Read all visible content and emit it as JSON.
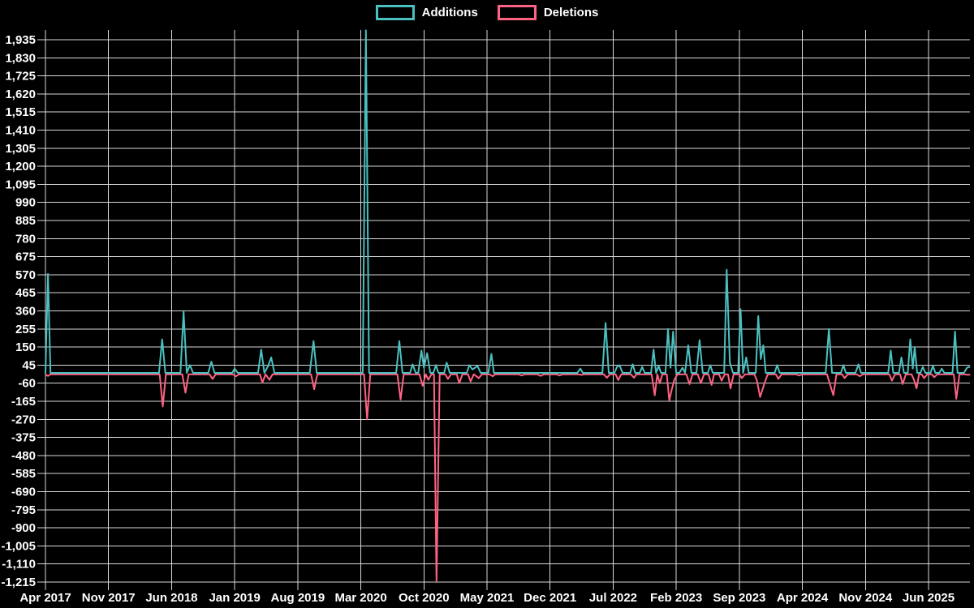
{
  "legend": {
    "items": [
      {
        "label": "Additions",
        "color": "#4bc0c0"
      },
      {
        "label": "Deletions",
        "color": "#ff6384"
      }
    ]
  },
  "chart_data": {
    "type": "line",
    "title": "",
    "legend_position": "top",
    "grid": "on",
    "background_color": "#000000",
    "grid_color": "#d9d9d9",
    "text_color": "#ffffff",
    "x_ticks": [
      "Apr 2017",
      "Nov 2017",
      "Jun 2018",
      "Jan 2019",
      "Aug 2019",
      "Mar 2020",
      "Oct 2020",
      "May 2021",
      "Dec 2021",
      "Jul 2022",
      "Feb 2023",
      "Sep 2023",
      "Apr 2024",
      "Nov 2024",
      "Jun 2025"
    ],
    "x_note": "series x values are fractional tick positions: 0 = Apr 2017, 14 = Jun 2025 (ticks every 7 months); data extends to 14.65",
    "y_axis": {
      "max": 1935,
      "min": -1215,
      "step": 105
    },
    "xlim": [
      0,
      14.65
    ],
    "series": [
      {
        "name": "Additions",
        "color": "#4bc0c0",
        "points": [
          [
            0.0,
            0
          ],
          [
            0.04,
            575
          ],
          [
            0.08,
            0
          ],
          [
            1.8,
            0
          ],
          [
            1.85,
            195
          ],
          [
            1.9,
            0
          ],
          [
            2.14,
            0
          ],
          [
            2.19,
            355
          ],
          [
            2.24,
            0
          ],
          [
            2.29,
            45
          ],
          [
            2.34,
            0
          ],
          [
            2.58,
            0
          ],
          [
            2.63,
            65
          ],
          [
            2.68,
            0
          ],
          [
            2.96,
            0
          ],
          [
            3.0,
            25
          ],
          [
            3.05,
            0
          ],
          [
            3.37,
            0
          ],
          [
            3.42,
            135
          ],
          [
            3.47,
            0
          ],
          [
            3.53,
            40
          ],
          [
            3.58,
            90
          ],
          [
            3.63,
            0
          ],
          [
            4.19,
            0
          ],
          [
            4.25,
            185
          ],
          [
            4.3,
            0
          ],
          [
            5.03,
            0
          ],
          [
            5.08,
            1990
          ],
          [
            5.13,
            0
          ],
          [
            5.56,
            0
          ],
          [
            5.61,
            185
          ],
          [
            5.66,
            0
          ],
          [
            5.78,
            0
          ],
          [
            5.82,
            50
          ],
          [
            5.87,
            0
          ],
          [
            5.91,
            0
          ],
          [
            5.96,
            130
          ],
          [
            6.0,
            30
          ],
          [
            6.05,
            115
          ],
          [
            6.1,
            0
          ],
          [
            6.15,
            0
          ],
          [
            6.19,
            45
          ],
          [
            6.23,
            0
          ],
          [
            6.32,
            0
          ],
          [
            6.36,
            60
          ],
          [
            6.41,
            0
          ],
          [
            6.68,
            0
          ],
          [
            6.72,
            45
          ],
          [
            6.77,
            20
          ],
          [
            6.85,
            40
          ],
          [
            6.9,
            0
          ],
          [
            7.02,
            0
          ],
          [
            7.07,
            110
          ],
          [
            7.11,
            0
          ],
          [
            8.43,
            0
          ],
          [
            8.48,
            25
          ],
          [
            8.52,
            0
          ],
          [
            8.83,
            0
          ],
          [
            8.88,
            290
          ],
          [
            8.93,
            0
          ],
          [
            9.02,
            0
          ],
          [
            9.06,
            35
          ],
          [
            9.1,
            45
          ],
          [
            9.15,
            0
          ],
          [
            9.27,
            0
          ],
          [
            9.31,
            50
          ],
          [
            9.35,
            0
          ],
          [
            9.42,
            0
          ],
          [
            9.46,
            35
          ],
          [
            9.5,
            0
          ],
          [
            9.6,
            0
          ],
          [
            9.64,
            135
          ],
          [
            9.68,
            0
          ],
          [
            9.72,
            40
          ],
          [
            9.76,
            0
          ],
          [
            9.83,
            0
          ],
          [
            9.87,
            255
          ],
          [
            9.91,
            30
          ],
          [
            9.95,
            240
          ],
          [
            10.0,
            0
          ],
          [
            10.05,
            0
          ],
          [
            10.1,
            30
          ],
          [
            10.14,
            0
          ],
          [
            10.19,
            160
          ],
          [
            10.24,
            0
          ],
          [
            10.32,
            0
          ],
          [
            10.37,
            190
          ],
          [
            10.42,
            0
          ],
          [
            10.5,
            0
          ],
          [
            10.54,
            45
          ],
          [
            10.58,
            0
          ],
          [
            10.76,
            0
          ],
          [
            10.8,
            600
          ],
          [
            10.85,
            60
          ],
          [
            10.9,
            0
          ],
          [
            10.98,
            0
          ],
          [
            11.02,
            370
          ],
          [
            11.06,
            0
          ],
          [
            11.11,
            90
          ],
          [
            11.15,
            0
          ],
          [
            11.26,
            0
          ],
          [
            11.3,
            330
          ],
          [
            11.34,
            80
          ],
          [
            11.38,
            160
          ],
          [
            11.42,
            0
          ],
          [
            11.56,
            0
          ],
          [
            11.6,
            45
          ],
          [
            11.64,
            0
          ],
          [
            12.37,
            0
          ],
          [
            12.42,
            255
          ],
          [
            12.47,
            0
          ],
          [
            12.61,
            0
          ],
          [
            12.65,
            45
          ],
          [
            12.69,
            0
          ],
          [
            12.84,
            0
          ],
          [
            12.89,
            50
          ],
          [
            12.93,
            0
          ],
          [
            13.36,
            0
          ],
          [
            13.4,
            130
          ],
          [
            13.44,
            0
          ],
          [
            13.53,
            0
          ],
          [
            13.57,
            90
          ],
          [
            13.61,
            0
          ],
          [
            13.67,
            0
          ],
          [
            13.71,
            195
          ],
          [
            13.75,
            25
          ],
          [
            13.78,
            150
          ],
          [
            13.82,
            0
          ],
          [
            13.87,
            0
          ],
          [
            13.91,
            35
          ],
          [
            13.95,
            0
          ],
          [
            14.03,
            0
          ],
          [
            14.07,
            40
          ],
          [
            14.11,
            0
          ],
          [
            14.17,
            0
          ],
          [
            14.21,
            25
          ],
          [
            14.25,
            0
          ],
          [
            14.38,
            0
          ],
          [
            14.42,
            240
          ],
          [
            14.46,
            0
          ],
          [
            14.56,
            0
          ],
          [
            14.61,
            30
          ],
          [
            14.65,
            35
          ]
        ]
      },
      {
        "name": "Deletions",
        "color": "#ff6384",
        "points": [
          [
            0.0,
            -8
          ],
          [
            0.04,
            -18
          ],
          [
            0.08,
            -8
          ],
          [
            1.81,
            -8
          ],
          [
            1.86,
            -195
          ],
          [
            1.91,
            -8
          ],
          [
            2.17,
            -8
          ],
          [
            2.22,
            -115
          ],
          [
            2.27,
            -8
          ],
          [
            2.6,
            -8
          ],
          [
            2.65,
            -35
          ],
          [
            2.7,
            -8
          ],
          [
            2.97,
            -8
          ],
          [
            3.02,
            -20
          ],
          [
            3.07,
            -8
          ],
          [
            3.4,
            -8
          ],
          [
            3.44,
            -55
          ],
          [
            3.49,
            -8
          ],
          [
            3.55,
            -40
          ],
          [
            3.6,
            -8
          ],
          [
            4.21,
            -8
          ],
          [
            4.26,
            -95
          ],
          [
            4.31,
            -8
          ],
          [
            5.05,
            -8
          ],
          [
            5.1,
            -270
          ],
          [
            5.15,
            -8
          ],
          [
            5.58,
            -8
          ],
          [
            5.63,
            -155
          ],
          [
            5.68,
            -8
          ],
          [
            5.93,
            -8
          ],
          [
            5.98,
            -75
          ],
          [
            6.03,
            -8
          ],
          [
            6.07,
            -40
          ],
          [
            6.12,
            -8
          ],
          [
            6.16,
            -8
          ],
          [
            6.2,
            -1210
          ],
          [
            6.25,
            -8
          ],
          [
            6.34,
            -8
          ],
          [
            6.38,
            -35
          ],
          [
            6.43,
            -8
          ],
          [
            6.52,
            -8
          ],
          [
            6.56,
            -60
          ],
          [
            6.61,
            -8
          ],
          [
            6.7,
            -8
          ],
          [
            6.74,
            -50
          ],
          [
            6.79,
            -8
          ],
          [
            6.87,
            -30
          ],
          [
            6.92,
            -8
          ],
          [
            7.04,
            -8
          ],
          [
            7.09,
            -20
          ],
          [
            7.13,
            -8
          ],
          [
            7.5,
            -8
          ],
          [
            7.55,
            -15
          ],
          [
            7.6,
            -8
          ],
          [
            7.8,
            -8
          ],
          [
            7.85,
            -18
          ],
          [
            7.9,
            -8
          ],
          [
            8.1,
            -8
          ],
          [
            8.15,
            -15
          ],
          [
            8.2,
            -8
          ],
          [
            8.45,
            -8
          ],
          [
            8.5,
            -12
          ],
          [
            8.54,
            -8
          ],
          [
            8.85,
            -8
          ],
          [
            8.9,
            -28
          ],
          [
            8.95,
            -8
          ],
          [
            9.04,
            -8
          ],
          [
            9.08,
            -42
          ],
          [
            9.13,
            -8
          ],
          [
            9.28,
            -8
          ],
          [
            9.33,
            -28
          ],
          [
            9.37,
            -8
          ],
          [
            9.61,
            -8
          ],
          [
            9.66,
            -130
          ],
          [
            9.7,
            -8
          ],
          [
            9.74,
            -60
          ],
          [
            9.78,
            -8
          ],
          [
            9.85,
            -8
          ],
          [
            9.89,
            -160
          ],
          [
            9.93,
            -95
          ],
          [
            9.97,
            -40
          ],
          [
            10.02,
            -8
          ],
          [
            10.16,
            -8
          ],
          [
            10.21,
            -65
          ],
          [
            10.26,
            -8
          ],
          [
            10.34,
            -8
          ],
          [
            10.39,
            -60
          ],
          [
            10.44,
            -8
          ],
          [
            10.51,
            -8
          ],
          [
            10.56,
            -70
          ],
          [
            10.6,
            -8
          ],
          [
            10.68,
            -8
          ],
          [
            10.72,
            -45
          ],
          [
            10.77,
            -8
          ],
          [
            10.82,
            -8
          ],
          [
            10.86,
            -90
          ],
          [
            10.91,
            -8
          ],
          [
            11.0,
            -8
          ],
          [
            11.04,
            -30
          ],
          [
            11.09,
            -8
          ],
          [
            11.24,
            -8
          ],
          [
            11.28,
            -45
          ],
          [
            11.33,
            -140
          ],
          [
            11.4,
            -60
          ],
          [
            11.45,
            -8
          ],
          [
            11.58,
            -8
          ],
          [
            11.62,
            -35
          ],
          [
            11.67,
            -8
          ],
          [
            11.9,
            -8
          ],
          [
            11.95,
            -15
          ],
          [
            12.0,
            -8
          ],
          [
            12.39,
            -8
          ],
          [
            12.44,
            -70
          ],
          [
            12.49,
            -130
          ],
          [
            12.54,
            -8
          ],
          [
            12.63,
            -8
          ],
          [
            12.67,
            -30
          ],
          [
            12.72,
            -8
          ],
          [
            12.86,
            -8
          ],
          [
            12.91,
            -20
          ],
          [
            12.96,
            -8
          ],
          [
            13.38,
            -8
          ],
          [
            13.42,
            -45
          ],
          [
            13.47,
            -8
          ],
          [
            13.55,
            -8
          ],
          [
            13.59,
            -65
          ],
          [
            13.64,
            -8
          ],
          [
            13.73,
            -8
          ],
          [
            13.77,
            -40
          ],
          [
            13.81,
            -90
          ],
          [
            13.85,
            -8
          ],
          [
            13.89,
            -8
          ],
          [
            13.93,
            -30
          ],
          [
            13.98,
            -8
          ],
          [
            14.05,
            -8
          ],
          [
            14.09,
            -25
          ],
          [
            14.14,
            -8
          ],
          [
            14.4,
            -8
          ],
          [
            14.44,
            -150
          ],
          [
            14.49,
            -8
          ],
          [
            14.58,
            -8
          ],
          [
            14.62,
            -12
          ],
          [
            14.65,
            -10
          ]
        ]
      }
    ]
  }
}
